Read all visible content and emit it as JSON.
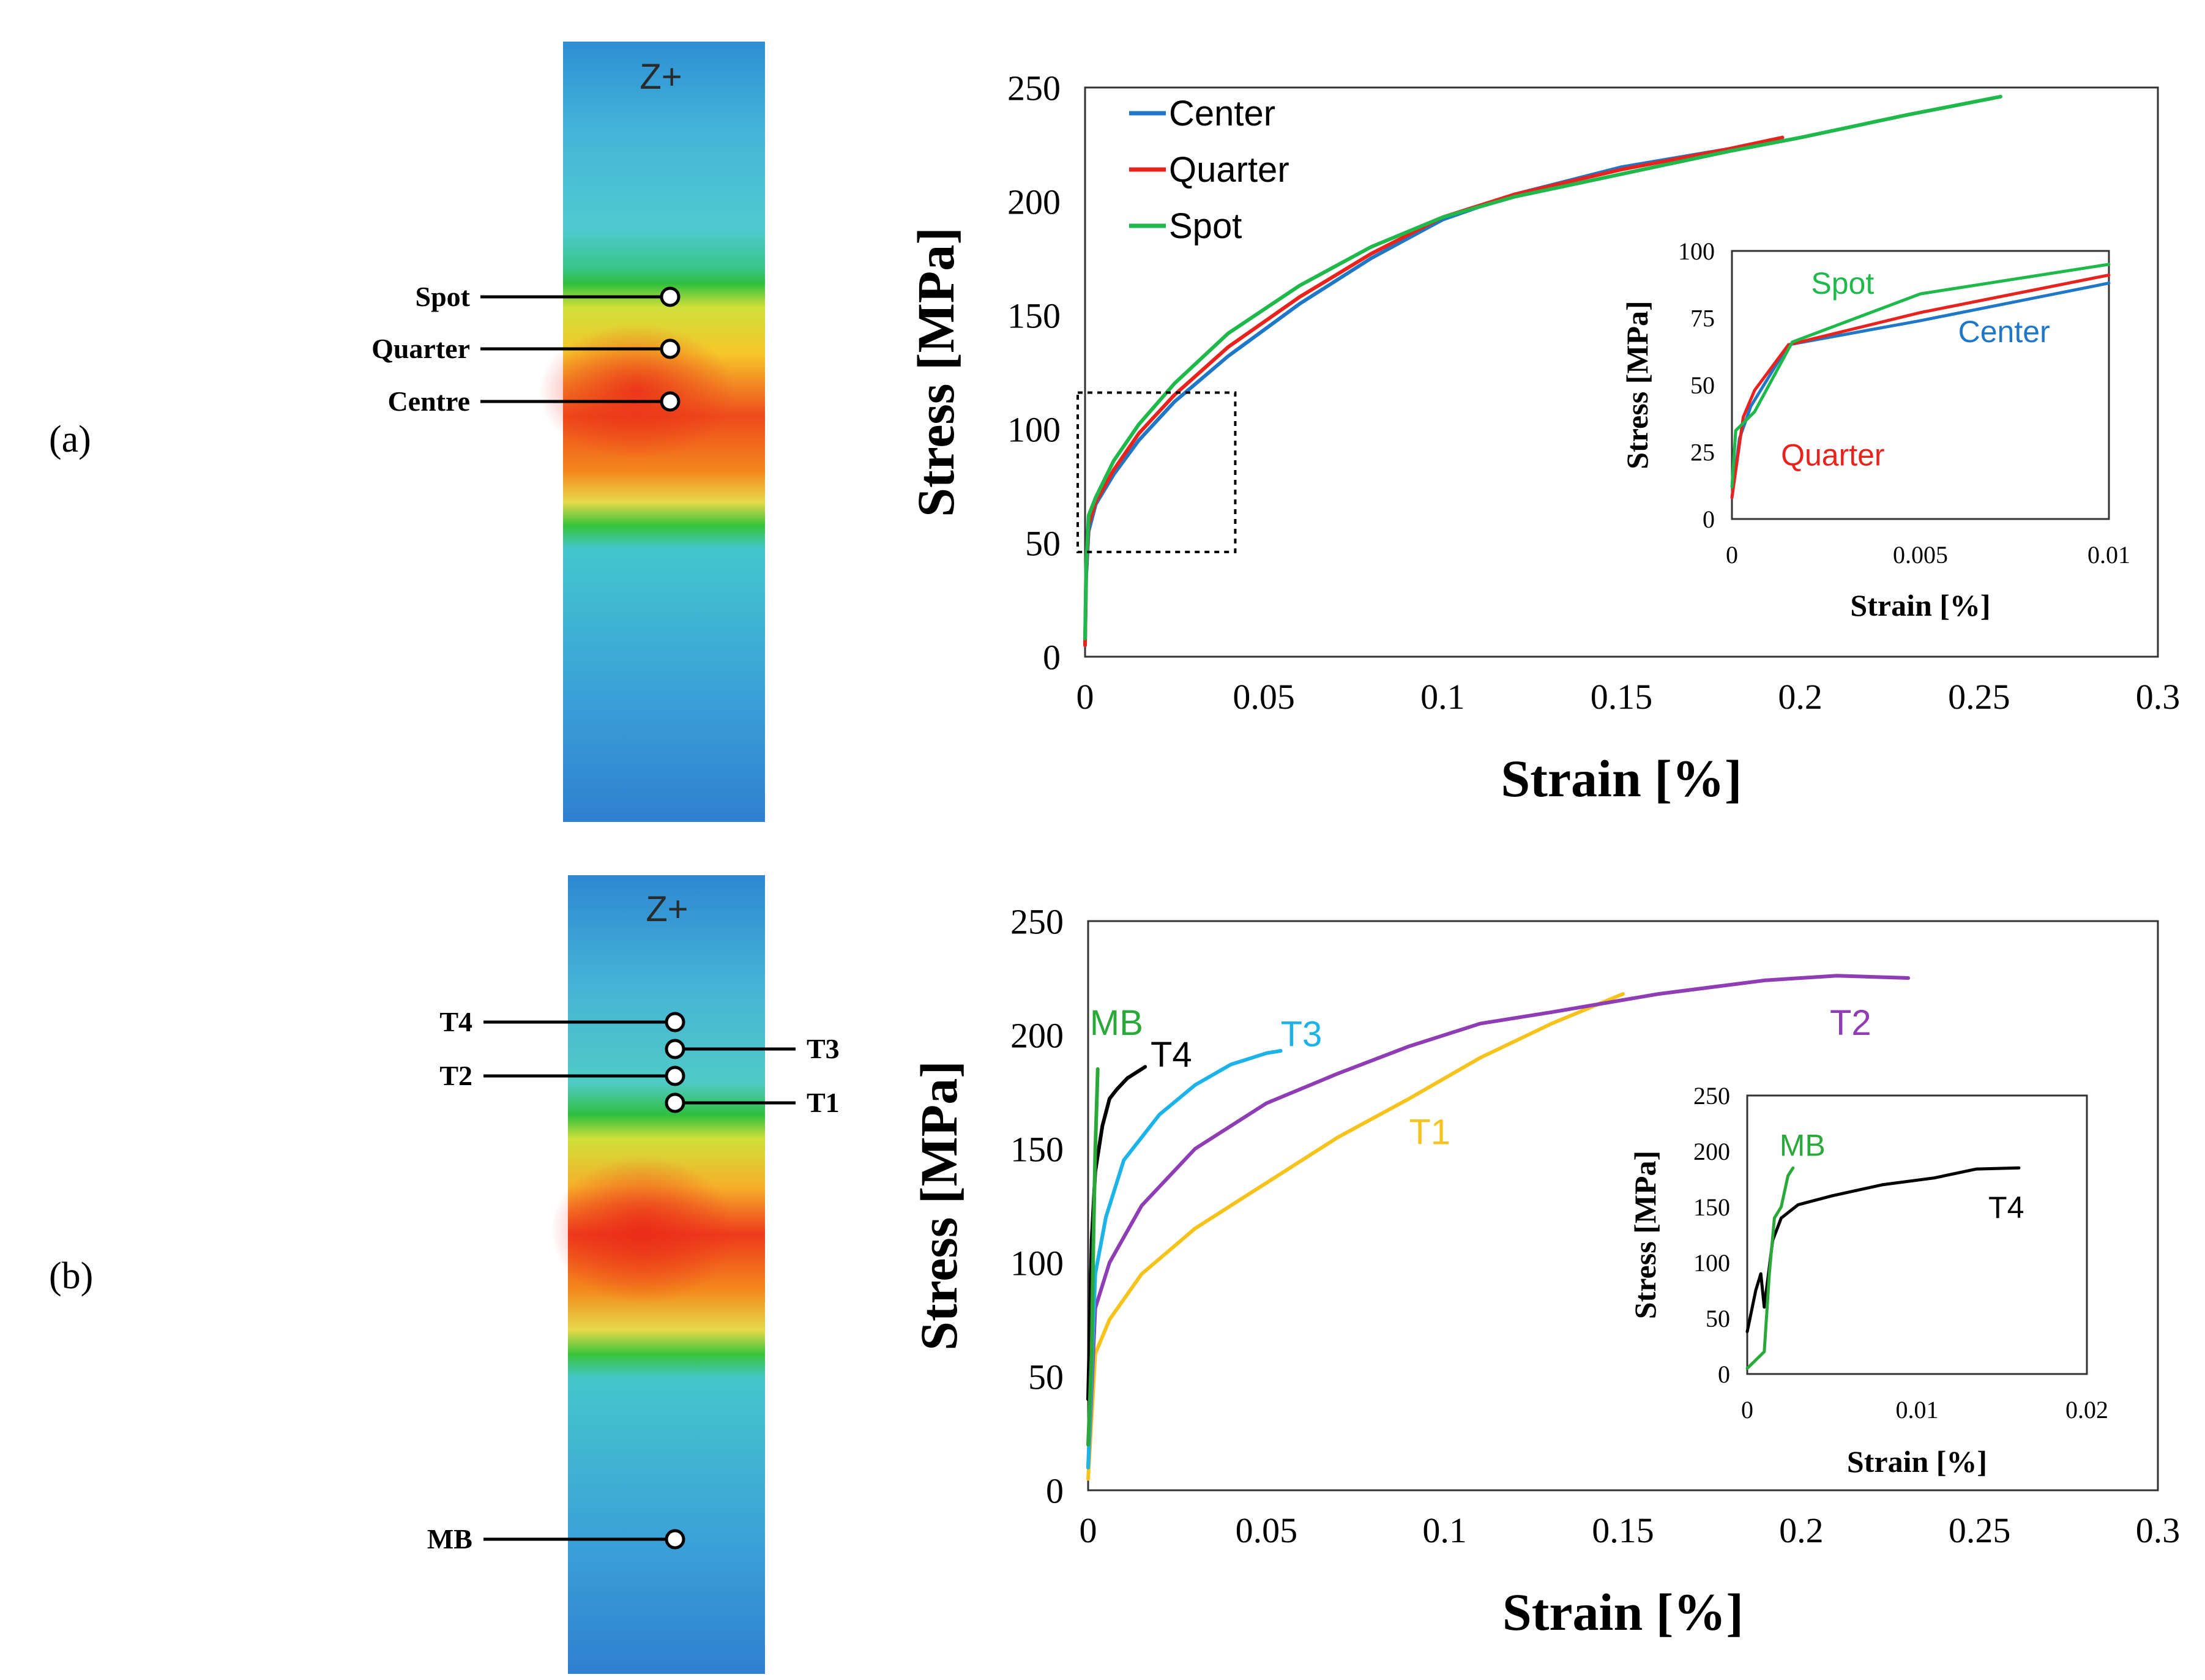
{
  "colors": {
    "center": "#1f77c8",
    "quarter": "#e8231d",
    "spot": "#1fb84a",
    "T1": "#f6c31c",
    "T2": "#8e3db4",
    "T3": "#1cb4e8",
    "T4": "#000000",
    "MB": "#2aa83a"
  },
  "panels": {
    "a": {
      "label": "(a)",
      "specimen_label": "Z+",
      "points": [
        {
          "name": "Spot"
        },
        {
          "name": "Quarter"
        },
        {
          "name": "Centre"
        }
      ]
    },
    "b": {
      "label": "(b)",
      "specimen_label": "Z+",
      "points": [
        {
          "name": "T4"
        },
        {
          "name": "T3"
        },
        {
          "name": "T2"
        },
        {
          "name": "T1"
        },
        {
          "name": "MB"
        }
      ]
    }
  },
  "chart_data": [
    {
      "id": "a-main",
      "type": "line",
      "xlabel": "Strain [%]",
      "ylabel": "Stress [MPa]",
      "xlim": [
        0,
        0.3
      ],
      "ylim": [
        0,
        250
      ],
      "xticks": [
        "0",
        "0.05",
        "0.1",
        "0.15",
        "0.2",
        "0.25",
        "0.3"
      ],
      "yticks": [
        "0",
        "50",
        "100",
        "150",
        "200",
        "250"
      ],
      "legend": [
        "Center",
        "Quarter",
        "Spot"
      ],
      "legend_position": "top-left",
      "zoom_box": {
        "xlim": [
          0,
          0.042
        ],
        "ylim": [
          46,
          116
        ]
      },
      "series": [
        {
          "name": "Center",
          "x": [
            0,
            0.0003,
            0.001,
            0.003,
            0.008,
            0.015,
            0.025,
            0.04,
            0.06,
            0.08,
            0.1,
            0.12,
            0.15,
            0.18,
            0.195
          ],
          "y": [
            5,
            35,
            55,
            67,
            80,
            95,
            112,
            132,
            155,
            175,
            192,
            203,
            215,
            223,
            228
          ]
        },
        {
          "name": "Quarter",
          "x": [
            0,
            0.0003,
            0.001,
            0.003,
            0.008,
            0.015,
            0.025,
            0.04,
            0.06,
            0.08,
            0.1,
            0.12,
            0.15,
            0.18,
            0.195
          ],
          "y": [
            5,
            38,
            58,
            68,
            82,
            98,
            115,
            136,
            158,
            177,
            193,
            203,
            214,
            223,
            228
          ]
        },
        {
          "name": "Spot",
          "x": [
            0,
            0.0003,
            0.001,
            0.003,
            0.008,
            0.015,
            0.025,
            0.04,
            0.06,
            0.08,
            0.1,
            0.12,
            0.15,
            0.18,
            0.2,
            0.23,
            0.256
          ],
          "y": [
            8,
            40,
            62,
            70,
            86,
            102,
            120,
            142,
            163,
            180,
            193,
            202,
            212,
            222,
            228,
            238,
            246
          ]
        }
      ]
    },
    {
      "id": "a-inset",
      "type": "line",
      "xlabel": "Strain [%]",
      "ylabel": "Stress [MPa]",
      "xlim": [
        0,
        0.01
      ],
      "ylim": [
        0,
        100
      ],
      "xticks": [
        "0",
        "0.005",
        "0.01"
      ],
      "yticks": [
        "0",
        "25",
        "50",
        "75",
        "100"
      ],
      "annotations": [
        "Spot",
        "Center",
        "Quarter"
      ],
      "series": [
        {
          "name": "Center",
          "x": [
            0,
            0.0002,
            0.0005,
            0.0015,
            0.005,
            0.01
          ],
          "y": [
            8,
            30,
            42,
            65,
            74,
            88
          ]
        },
        {
          "name": "Quarter",
          "x": [
            0,
            0.0003,
            0.0006,
            0.0015,
            0.005,
            0.01
          ],
          "y": [
            8,
            38,
            48,
            65,
            77,
            91
          ]
        },
        {
          "name": "Spot",
          "x": [
            0,
            0.0001,
            0.0006,
            0.0016,
            0.005,
            0.01
          ],
          "y": [
            12,
            33,
            40,
            66,
            84,
            95
          ]
        }
      ]
    },
    {
      "id": "b-main",
      "type": "line",
      "xlabel": "Strain [%]",
      "ylabel": "Stress [MPa]",
      "xlim": [
        0,
        0.3
      ],
      "ylim": [
        0,
        250
      ],
      "xticks": [
        "0",
        "0.05",
        "0.1",
        "0.15",
        "0.2",
        "0.25",
        "0.3"
      ],
      "yticks": [
        "0",
        "50",
        "100",
        "150",
        "200",
        "250"
      ],
      "annotations": [
        "MB",
        "T4",
        "T3",
        "T2",
        "T1"
      ],
      "series": [
        {
          "name": "T1",
          "x": [
            0,
            0.002,
            0.006,
            0.015,
            0.03,
            0.05,
            0.07,
            0.09,
            0.11,
            0.13,
            0.15
          ],
          "y": [
            5,
            60,
            75,
            95,
            115,
            135,
            155,
            172,
            190,
            205,
            218
          ]
        },
        {
          "name": "T2",
          "x": [
            0,
            0.002,
            0.006,
            0.015,
            0.03,
            0.05,
            0.07,
            0.09,
            0.11,
            0.13,
            0.16,
            0.19,
            0.21,
            0.23
          ],
          "y": [
            10,
            80,
            100,
            125,
            150,
            170,
            183,
            195,
            205,
            210,
            218,
            224,
            226,
            225
          ]
        },
        {
          "name": "T3",
          "x": [
            0,
            0.002,
            0.005,
            0.01,
            0.02,
            0.03,
            0.04,
            0.05,
            0.054
          ],
          "y": [
            10,
            95,
            120,
            145,
            165,
            178,
            187,
            192,
            193
          ]
        },
        {
          "name": "T4",
          "x": [
            0,
            0.001,
            0.002,
            0.004,
            0.006,
            0.008,
            0.011,
            0.014,
            0.016
          ],
          "y": [
            40,
            110,
            140,
            160,
            172,
            176,
            181,
            184,
            186
          ]
        },
        {
          "name": "MB",
          "x": [
            0,
            0.001,
            0.0015,
            0.002,
            0.0025,
            0.0027
          ],
          "y": [
            20,
            60,
            110,
            150,
            175,
            185
          ]
        }
      ]
    },
    {
      "id": "b-inset",
      "type": "line",
      "xlabel": "Strain [%]",
      "ylabel": "Stress [MPa]",
      "xlim": [
        0,
        0.02
      ],
      "ylim": [
        0,
        250
      ],
      "xticks": [
        "0",
        "0.01",
        "0.02"
      ],
      "yticks": [
        "0",
        "50",
        "100",
        "150",
        "200",
        "250"
      ],
      "annotations": [
        "MB",
        "T4"
      ],
      "series": [
        {
          "name": "T4",
          "x": [
            0,
            0.0005,
            0.0008,
            0.001,
            0.0015,
            0.002,
            0.003,
            0.005,
            0.008,
            0.011,
            0.0135,
            0.016
          ],
          "y": [
            38,
            75,
            90,
            60,
            120,
            140,
            152,
            160,
            170,
            176,
            184,
            185
          ]
        },
        {
          "name": "MB",
          "x": [
            0,
            0.001,
            0.0013,
            0.0016,
            0.002,
            0.0024,
            0.0027
          ],
          "y": [
            5,
            20,
            90,
            140,
            150,
            178,
            185
          ]
        }
      ]
    }
  ]
}
